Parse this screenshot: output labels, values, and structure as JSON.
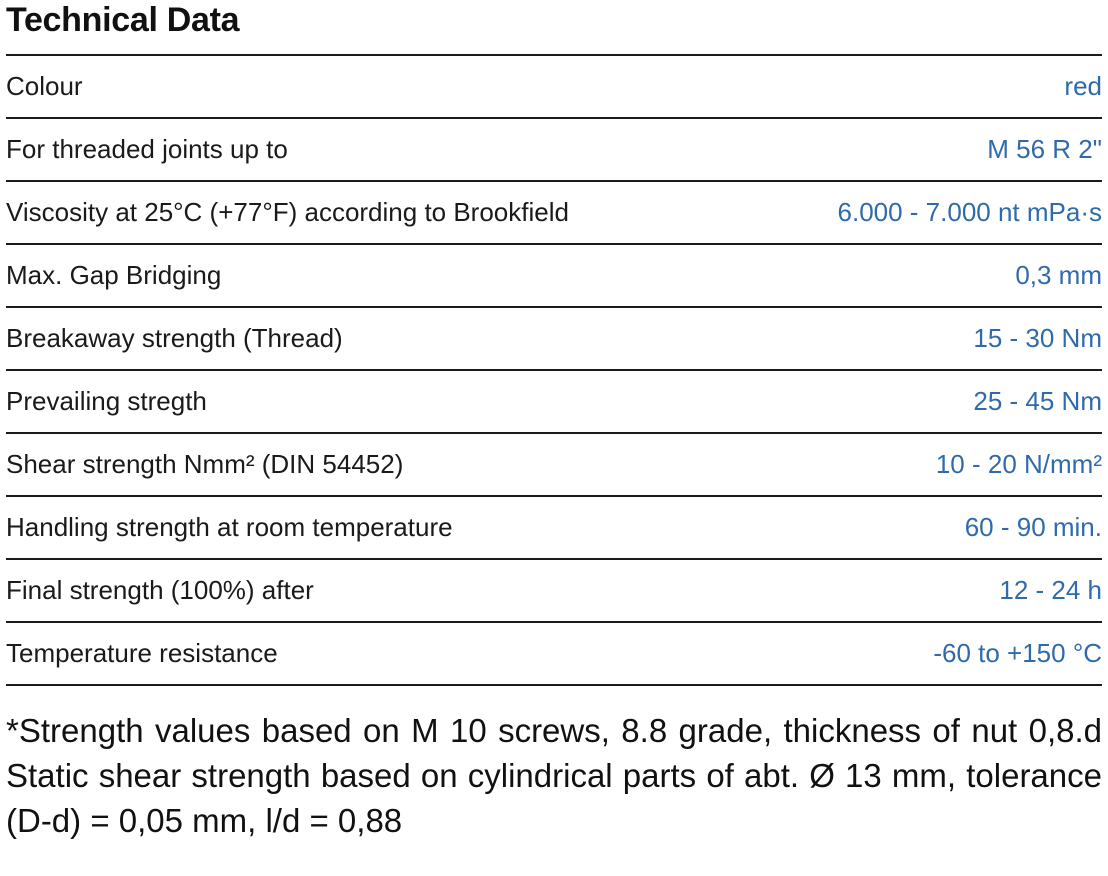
{
  "title": "Technical Data",
  "rows": [
    {
      "label": "Colour",
      "value": "red"
    },
    {
      "label": "For threaded joints up to",
      "value": "M 56 R 2\""
    },
    {
      "label": "Viscosity  at 25°C (+77°F) according to Brookfield",
      "value": "6.000 - 7.000 nt mPa·s"
    },
    {
      "label": "Max. Gap Bridging",
      "value": "0,3 mm"
    },
    {
      "label": "Breakaway strength (Thread)",
      "value": "15 - 30 Nm"
    },
    {
      "label": "Prevailing stregth",
      "value": "25 - 45 Nm"
    },
    {
      "label": "Shear strength Nmm² (DIN 54452)",
      "value": "10 - 20 N/mm²"
    },
    {
      "label": "Handling strength at room temperature",
      "value": "60 - 90 min."
    },
    {
      "label": "Final strength (100%) after",
      "value": "12 - 24 h"
    },
    {
      "label": "Temperature resistance",
      "value": "-60 to +150 °C"
    }
  ],
  "footnote": "*Strength values based on M 10 screws, 8.8 grade, thickness of nut 0,8.d Static shear strength based on cylindrical parts of abt. Ø 13 mm, tolerance (D-d) = 0,05 mm, l/d = 0,88",
  "colors": {
    "value_text": "#2f6bab",
    "label_text": "#1a1a1a",
    "rule": "#1a1a1a"
  }
}
